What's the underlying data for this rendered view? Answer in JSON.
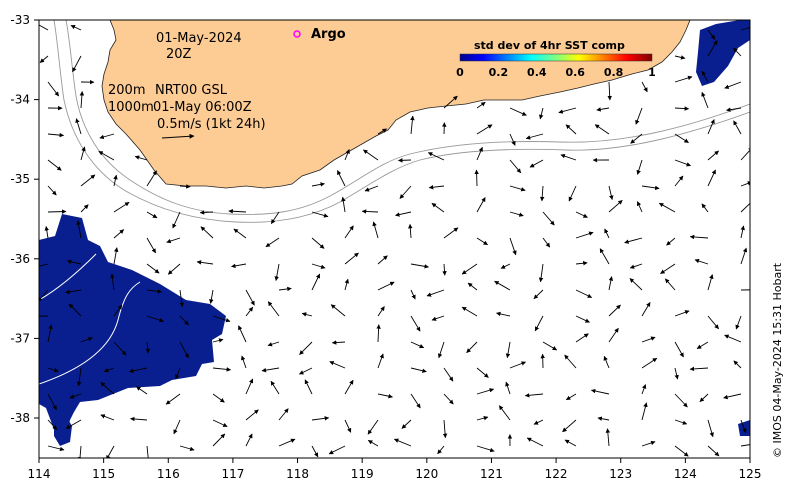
{
  "axes": {
    "lon_ticks": [
      "114",
      "115",
      "116",
      "117",
      "118",
      "119",
      "120",
      "121",
      "122",
      "123",
      "124",
      "125"
    ],
    "lat_ticks": [
      "-33",
      "-34",
      "-35",
      "-36",
      "-37",
      "-38"
    ]
  },
  "annotations": {
    "date": "01-May-2024",
    "time": "20Z",
    "depth_200": "200m",
    "depth_1000": "1000m",
    "product": "NRT00 GSL",
    "product_time": "01-May 06:00Z",
    "scale_label": "0.5m/s (1kt 24h)"
  },
  "legend": {
    "argo_label": "Argo",
    "argo_color": "#ff00ff",
    "colorbar_title": "std dev of 4hr SST comp",
    "colorbar_ticks": [
      "0",
      "0.2",
      "0.4",
      "0.6",
      "0.8",
      "1"
    ]
  },
  "credit": "© IMOS 04-May-2024 15:31 Hobart",
  "colors": {
    "land": "#fdcb94",
    "sst_low": "#0a1f8f",
    "contour": "#9a9a9a"
  }
}
